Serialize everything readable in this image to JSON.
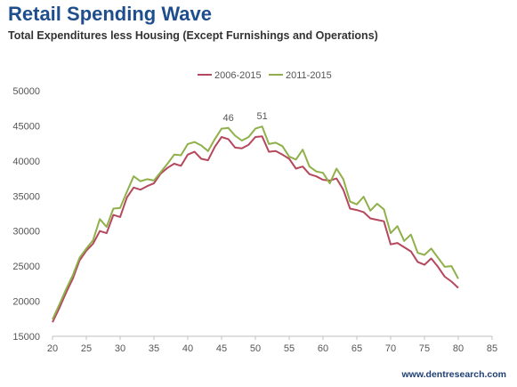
{
  "header": {
    "title": "Retail Spending Wave",
    "subtitle": "Total Expenditures less Housing (Except Furnishings and Operations)"
  },
  "footer": {
    "source": "www.dentresearch.com"
  },
  "colors": {
    "title": "#1f4e8c",
    "series_2006_2015": "#b5485d",
    "series_2011_2015": "#8fb04a",
    "axis": "#888888"
  },
  "chart_data": {
    "type": "line",
    "title": "",
    "xlabel": "",
    "ylabel": "",
    "xlim": [
      20,
      85
    ],
    "ylim": [
      15000,
      50000
    ],
    "xticks": [
      20,
      25,
      30,
      35,
      40,
      45,
      50,
      55,
      60,
      65,
      70,
      75,
      80,
      85
    ],
    "yticks": [
      15000,
      20000,
      25000,
      30000,
      35000,
      40000,
      45000,
      50000
    ],
    "grid": false,
    "legend": "top-center",
    "x": [
      20,
      21,
      22,
      23,
      24,
      25,
      26,
      27,
      28,
      29,
      30,
      31,
      32,
      33,
      34,
      35,
      36,
      37,
      38,
      39,
      40,
      41,
      42,
      43,
      44,
      45,
      46,
      47,
      48,
      49,
      50,
      51,
      52,
      53,
      54,
      55,
      56,
      57,
      58,
      59,
      60,
      61,
      62,
      63,
      64,
      65,
      66,
      67,
      68,
      69,
      70,
      71,
      72,
      73,
      74,
      75,
      76,
      77,
      78,
      79,
      80
    ],
    "series": [
      {
        "name": "2006-2015",
        "color": "#b5485d",
        "values": [
          17000,
          19000,
          21200,
          23200,
          25800,
          27200,
          28200,
          30000,
          29700,
          32300,
          32000,
          34800,
          36200,
          35900,
          36400,
          36800,
          38200,
          39000,
          39600,
          39300,
          40900,
          41300,
          40300,
          40100,
          42000,
          43400,
          43100,
          41900,
          41800,
          42300,
          43400,
          43500,
          41300,
          41400,
          40900,
          40300,
          38900,
          39200,
          38100,
          37800,
          37300,
          37200,
          37500,
          35900,
          33200,
          33000,
          32700,
          31800,
          31600,
          31400,
          28100,
          28300,
          27700,
          27100,
          25600,
          25200,
          26100,
          24900,
          23500,
          22800,
          21900
        ]
      },
      {
        "name": "2011-2015",
        "color": "#8fb04a",
        "values": [
          17400,
          19500,
          21700,
          23700,
          26200,
          27500,
          28700,
          31700,
          30600,
          33200,
          33300,
          35600,
          37800,
          37100,
          37400,
          37200,
          38400,
          39600,
          40900,
          40800,
          42400,
          42700,
          42200,
          41400,
          43100,
          44600,
          44700,
          43600,
          42900,
          43400,
          44600,
          44900,
          42400,
          42600,
          42100,
          40600,
          40200,
          41600,
          39200,
          38500,
          38300,
          36800,
          38900,
          37400,
          34200,
          33800,
          34900,
          32900,
          33900,
          33100,
          29700,
          30700,
          28600,
          29500,
          26900,
          26600,
          27500,
          26200,
          24900,
          25000,
          23200
        ]
      }
    ],
    "annotations": [
      {
        "x": 46,
        "text": "46"
      },
      {
        "x": 51,
        "text": "51"
      }
    ]
  }
}
